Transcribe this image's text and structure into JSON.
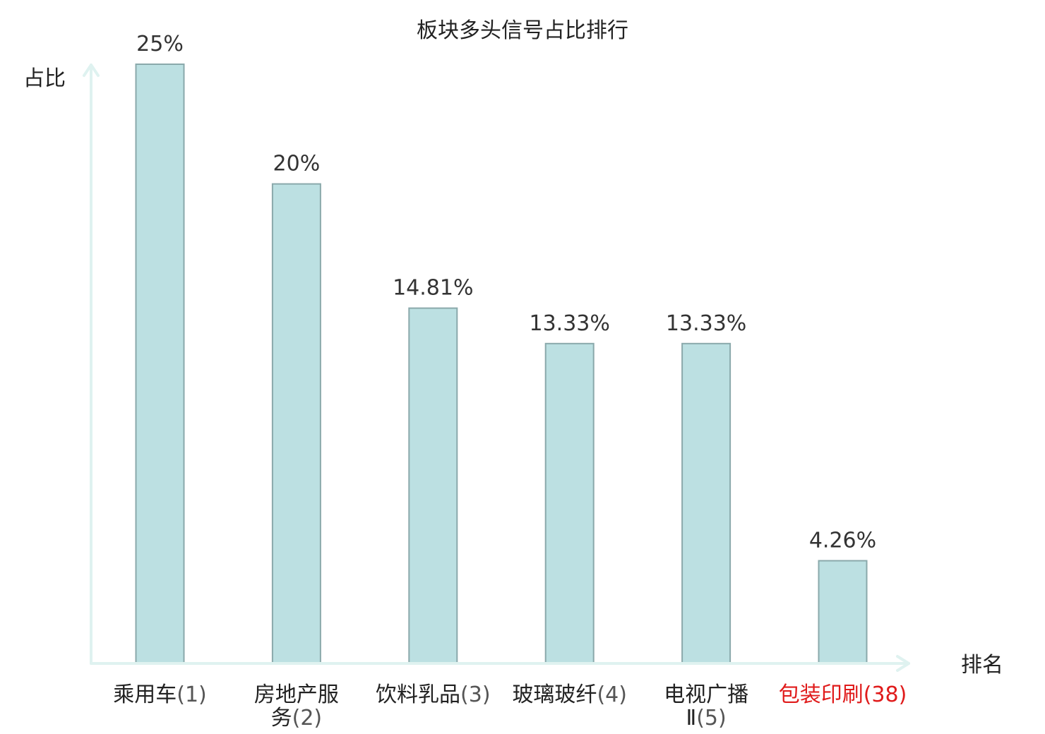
{
  "chart_data": {
    "type": "bar",
    "title": "板块多头信号占比排行",
    "ylabel": "占比",
    "xlabel": "排名",
    "ylim": [
      0,
      25
    ],
    "grid": false,
    "categories": [
      {
        "name": "乘用车",
        "rank": "(1)"
      },
      {
        "name": "房地产服务",
        "rank": "(2)"
      },
      {
        "name": "饮料乳品",
        "rank": "(3)"
      },
      {
        "name": "玻璃玻纤",
        "rank": "(4)"
      },
      {
        "name": "电视广播Ⅱ",
        "rank": "(5)"
      },
      {
        "name": "包装印刷",
        "rank": "(38)"
      }
    ],
    "values": [
      25,
      20,
      14.81,
      13.33,
      13.33,
      4.26
    ],
    "value_labels": [
      "25%",
      "20%",
      "14.81%",
      "13.33%",
      "13.33%",
      "4.26%"
    ],
    "highlight_index": 5,
    "colors": {
      "bar_fill": "#bce0e2",
      "bar_stroke": "#8aa9ab",
      "axis": "#dff2f0",
      "highlight_text": "#e01b1b"
    }
  }
}
